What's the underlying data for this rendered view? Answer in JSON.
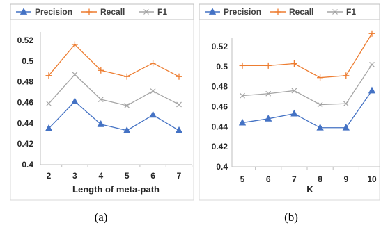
{
  "colors": {
    "Precision": "#4472C4",
    "Recall": "#ED7D31",
    "F1": "#A5A5A5"
  },
  "chart_data": [
    {
      "type": "line",
      "caption": "(a)",
      "xlabel": "Length of meta-path",
      "ylabel": "",
      "categories": [
        "2",
        "3",
        "4",
        "5",
        "6",
        "7"
      ],
      "ylim": [
        0.4,
        0.52
      ],
      "yticks": [
        "0.4",
        "0.42",
        "0.44",
        "0.46",
        "0.48",
        "0.5",
        "0.52"
      ],
      "grid": false,
      "legend": "top",
      "series": [
        {
          "name": "Precision",
          "marker": "triangle",
          "values": [
            0.435,
            0.461,
            0.439,
            0.433,
            0.448,
            0.433
          ]
        },
        {
          "name": "Recall",
          "marker": "plus",
          "values": [
            0.486,
            0.516,
            0.491,
            0.485,
            0.498,
            0.485
          ]
        },
        {
          "name": "F1",
          "marker": "x",
          "values": [
            0.459,
            0.487,
            0.463,
            0.457,
            0.471,
            0.458
          ]
        }
      ]
    },
    {
      "type": "line",
      "caption": "(b)",
      "xlabel": "K",
      "ylabel": "",
      "categories": [
        "5",
        "6",
        "7",
        "8",
        "9",
        "10"
      ],
      "ylim": [
        0.4,
        0.52
      ],
      "yticks": [
        "0.4",
        "0.42",
        "0.44",
        "0.46",
        "0.48",
        "0.5",
        "0.52"
      ],
      "grid": false,
      "legend": "top",
      "series": [
        {
          "name": "Precision",
          "marker": "triangle",
          "values": [
            0.444,
            0.448,
            0.453,
            0.439,
            0.439,
            0.476
          ]
        },
        {
          "name": "Recall",
          "marker": "plus",
          "values": [
            0.501,
            0.501,
            0.503,
            0.489,
            0.491,
            0.533
          ]
        },
        {
          "name": "F1",
          "marker": "x",
          "values": [
            0.471,
            0.473,
            0.476,
            0.462,
            0.463,
            0.502
          ]
        }
      ]
    }
  ]
}
